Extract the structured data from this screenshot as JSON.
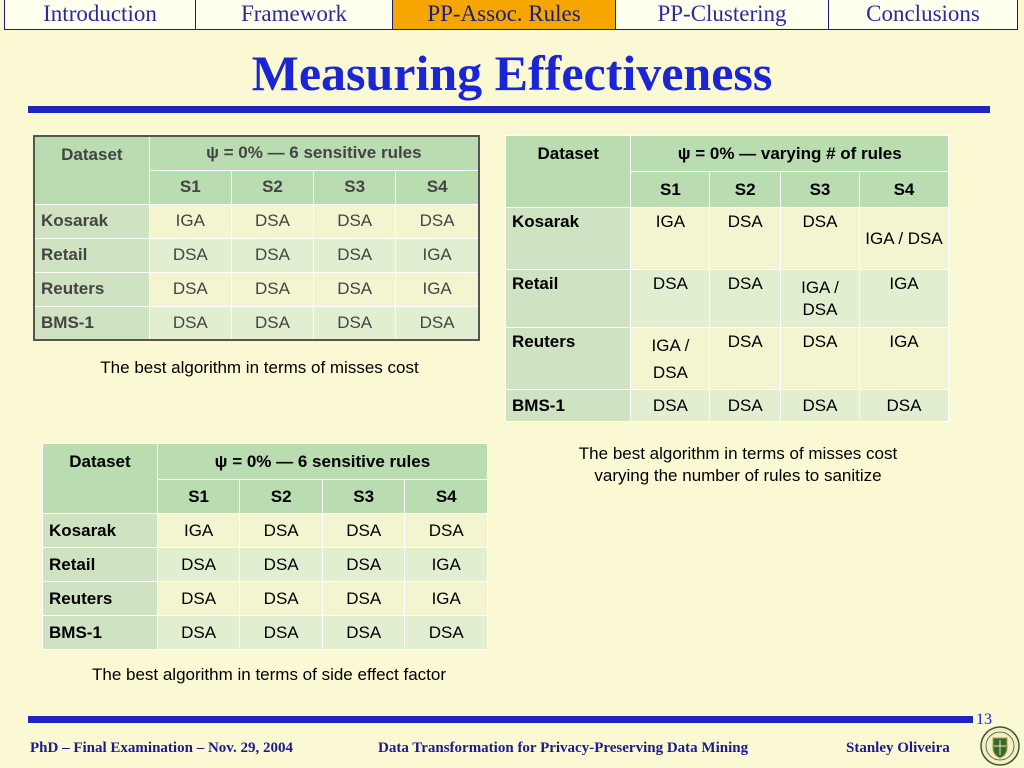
{
  "nav": {
    "tabs": [
      {
        "label": "Introduction"
      },
      {
        "label": "Framework"
      },
      {
        "label": "PP-Assoc. Rules"
      },
      {
        "label": "PP-Clustering"
      },
      {
        "label": "Conclusions"
      }
    ],
    "active_index": 2
  },
  "title": "Measuring Effectiveness",
  "table_a": {
    "dataset_header": "Dataset",
    "group_header": "ψ = 0%  —  6 sensitive rules",
    "columns": [
      "S1",
      "S2",
      "S3",
      "S4"
    ],
    "rows": [
      {
        "dataset": "Kosarak",
        "cells": [
          "IGA",
          "DSA",
          "DSA",
          "DSA"
        ]
      },
      {
        "dataset": "Retail",
        "cells": [
          "DSA",
          "DSA",
          "DSA",
          "IGA"
        ]
      },
      {
        "dataset": "Reuters",
        "cells": [
          "DSA",
          "DSA",
          "DSA",
          "IGA"
        ]
      },
      {
        "dataset": "BMS-1",
        "cells": [
          "DSA",
          "DSA",
          "DSA",
          "DSA"
        ]
      }
    ],
    "caption": "The best algorithm in terms of misses cost"
  },
  "table_b": {
    "dataset_header": "Dataset",
    "group_header": "ψ = 0%  —  varying # of rules",
    "columns": [
      "S1",
      "S2",
      "S3",
      "S4"
    ],
    "rows": [
      {
        "dataset": "Kosarak",
        "cells": [
          "IGA",
          "DSA",
          "DSA",
          "IGA / DSA"
        ]
      },
      {
        "dataset": "Retail",
        "cells": [
          "DSA",
          "DSA",
          "IGA / DSA",
          "IGA"
        ]
      },
      {
        "dataset": "Reuters",
        "cells": [
          "IGA / DSA",
          "DSA",
          "DSA",
          "IGA"
        ]
      },
      {
        "dataset": "BMS-1",
        "cells": [
          "DSA",
          "DSA",
          "DSA",
          "DSA"
        ]
      }
    ],
    "caption_line1": "The best algorithm in terms of misses cost",
    "caption_line2": "varying the number of rules to sanitize"
  },
  "table_c": {
    "dataset_header": "Dataset",
    "group_header": "ψ = 0%  —  6 sensitive rules",
    "columns": [
      "S1",
      "S2",
      "S3",
      "S4"
    ],
    "rows": [
      {
        "dataset": "Kosarak",
        "cells": [
          "IGA",
          "DSA",
          "DSA",
          "DSA"
        ]
      },
      {
        "dataset": "Retail",
        "cells": [
          "DSA",
          "DSA",
          "DSA",
          "IGA"
        ]
      },
      {
        "dataset": "Reuters",
        "cells": [
          "DSA",
          "DSA",
          "DSA",
          "IGA"
        ]
      },
      {
        "dataset": "BMS-1",
        "cells": [
          "DSA",
          "DSA",
          "DSA",
          "DSA"
        ]
      }
    ],
    "caption": "The best algorithm in terms of side effect factor"
  },
  "page_number": "13",
  "footer": {
    "left": "PhD – Final Examination – Nov. 29, 2004",
    "center": "Data Transformation for Privacy-Preserving Data Mining",
    "right": "Stanley Oliveira"
  },
  "colors": {
    "title_blue": "#1c25d6",
    "nav_active": "#f5a600",
    "header_green": "#b9dcb0",
    "background": "#fbf9d4"
  },
  "icons": {
    "logo": "university-crest-logo"
  }
}
